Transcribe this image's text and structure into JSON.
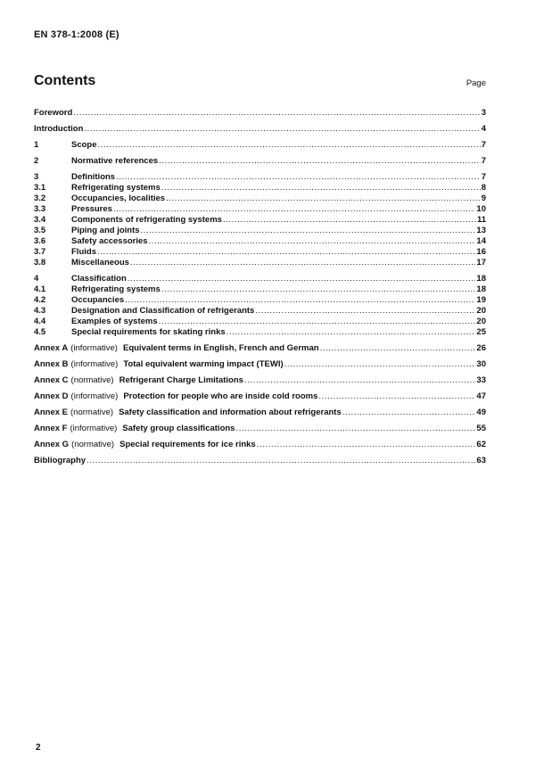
{
  "page": {
    "header": "EN 378-1:2008 (E)",
    "footer_page_number": "2"
  },
  "colors": {
    "text": "#111111",
    "background": "#ffffff"
  },
  "contents": {
    "title": "Contents",
    "page_column_label": "Page",
    "entries": [
      {
        "type": "plain",
        "label": "Foreword",
        "page": "3",
        "gap": false
      },
      {
        "type": "plain",
        "label": "Introduction",
        "page": "4",
        "gap": true
      },
      {
        "type": "clause",
        "num": "1",
        "label": "Scope",
        "page": "7",
        "gap": true
      },
      {
        "type": "clause",
        "num": "2",
        "label": "Normative references",
        "page": "7",
        "gap": true
      },
      {
        "type": "clause",
        "num": "3",
        "label": "Definitions",
        "page": "7",
        "gap": true
      },
      {
        "type": "clause",
        "num": "3.1",
        "label": "Refrigerating systems",
        "page": "8",
        "gap": false
      },
      {
        "type": "clause",
        "num": "3.2",
        "label": "Occupancies, localities",
        "page": "9",
        "gap": false
      },
      {
        "type": "clause",
        "num": "3.3",
        "label": "Pressures",
        "page": "10",
        "gap": false
      },
      {
        "type": "clause",
        "num": "3.4",
        "label": "Components of refrigerating systems",
        "page": "11",
        "gap": false
      },
      {
        "type": "clause",
        "num": "3.5",
        "label": "Piping and joints",
        "page": "13",
        "gap": false
      },
      {
        "type": "clause",
        "num": "3.6",
        "label": "Safety accessories",
        "page": "14",
        "gap": false
      },
      {
        "type": "clause",
        "num": "3.7",
        "label": "Fluids",
        "page": "16",
        "gap": false
      },
      {
        "type": "clause",
        "num": "3.8",
        "label": "Miscellaneous",
        "page": "17",
        "gap": false
      },
      {
        "type": "clause",
        "num": "4",
        "label": "Classification",
        "page": "18",
        "gap": true
      },
      {
        "type": "clause",
        "num": "4.1",
        "label": "Refrigerating systems",
        "page": "18",
        "gap": false
      },
      {
        "type": "clause",
        "num": "4.2",
        "label": "Occupancies",
        "page": "19",
        "gap": false
      },
      {
        "type": "clause",
        "num": "4.3",
        "label": "Designation and Classification of refrigerants",
        "page": "20",
        "gap": false
      },
      {
        "type": "clause",
        "num": "4.4",
        "label": "Examples of systems",
        "page": "20",
        "gap": false
      },
      {
        "type": "clause",
        "num": "4.5",
        "label": "Special requirements for skating rinks",
        "page": "25",
        "gap": false
      },
      {
        "type": "annex",
        "prefix": "Annex A",
        "qualifier": "(informative)",
        "label": "Equivalent terms in English, French and German",
        "page": "26",
        "gap": true
      },
      {
        "type": "annex",
        "prefix": "Annex B",
        "qualifier": "(informative)",
        "label": "Total equivalent warming impact (TEWI)",
        "page": "30",
        "gap": true
      },
      {
        "type": "annex",
        "prefix": "Annex C",
        "qualifier": "(normative)",
        "label": "Refrigerant Charge Limitations",
        "page": "33",
        "gap": true
      },
      {
        "type": "annex",
        "prefix": "Annex D",
        "qualifier": "(informative)",
        "label": "Protection for people who are inside cold rooms",
        "page": "47",
        "gap": true
      },
      {
        "type": "annex",
        "prefix": "Annex E",
        "qualifier": "(normative)",
        "label": "Safety classification and information about refrigerants",
        "page": "49",
        "gap": true
      },
      {
        "type": "annex",
        "prefix": "Annex F",
        "qualifier": "(informative)",
        "label": "Safety group classifications",
        "page": "55",
        "gap": true
      },
      {
        "type": "annex",
        "prefix": "Annex G",
        "qualifier": "(normative)",
        "label": "Special requirements for ice rinks",
        "page": "62",
        "gap": true
      },
      {
        "type": "plain",
        "label": "Bibliography",
        "page": "63",
        "gap": true
      }
    ]
  }
}
